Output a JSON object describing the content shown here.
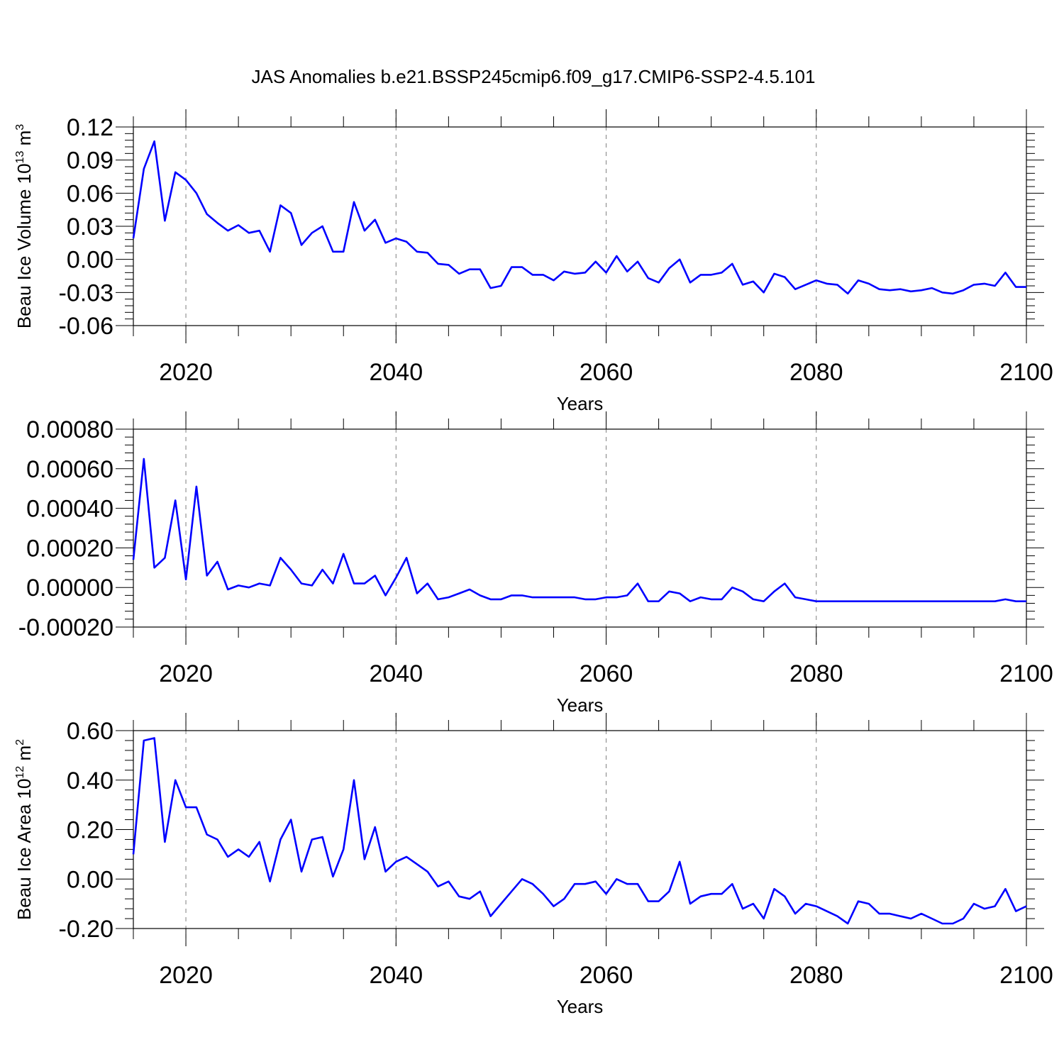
{
  "title": "JAS Anomalies b.e21.BSSP245cmip6.f09_g17.CMIP6-SSP2-4.5.101",
  "colors": {
    "series": "#0000ff",
    "axes": "#000000",
    "grid": "#808080"
  },
  "chart_data": [
    {
      "type": "line",
      "ylabel": "Beau Ice Volume",
      "ylabel_unit_base": "10",
      "ylabel_unit_exp": "13",
      "ylabel_unit_m": "m",
      "ylabel_unit_mexp": "3",
      "xlabel": "Years",
      "xlim": [
        2015,
        2100
      ],
      "ylim": [
        -0.06,
        0.12
      ],
      "yticks": [
        -0.06,
        -0.03,
        0.0,
        0.03,
        0.06,
        0.09,
        0.12
      ],
      "yticklabels": [
        "-0.06",
        "-0.03",
        "0.00",
        "0.03",
        "0.06",
        "0.09",
        "0.12"
      ],
      "xticks": [
        2020,
        2040,
        2060,
        2080,
        2100
      ],
      "xticklabels": [
        "2020",
        "2040",
        "2060",
        "2080",
        "2100"
      ],
      "grid_x": [
        2020,
        2040,
        2060,
        2080
      ],
      "x": [
        2015,
        2016,
        2017,
        2018,
        2019,
        2020,
        2021,
        2022,
        2023,
        2024,
        2025,
        2026,
        2027,
        2028,
        2029,
        2030,
        2031,
        2032,
        2033,
        2034,
        2035,
        2036,
        2037,
        2038,
        2039,
        2040,
        2041,
        2042,
        2043,
        2044,
        2045,
        2046,
        2047,
        2048,
        2049,
        2050,
        2051,
        2052,
        2053,
        2054,
        2055,
        2056,
        2057,
        2058,
        2059,
        2060,
        2061,
        2062,
        2063,
        2064,
        2065,
        2066,
        2067,
        2068,
        2069,
        2070,
        2071,
        2072,
        2073,
        2074,
        2075,
        2076,
        2077,
        2078,
        2079,
        2080,
        2081,
        2082,
        2083,
        2084,
        2085,
        2086,
        2087,
        2088,
        2089,
        2090,
        2091,
        2092,
        2093,
        2094,
        2095,
        2096,
        2097,
        2098,
        2099,
        2100
      ],
      "series": [
        {
          "values": [
            0.019,
            0.082,
            0.107,
            0.035,
            0.079,
            0.072,
            0.06,
            0.041,
            0.033,
            0.026,
            0.031,
            0.024,
            0.026,
            0.007,
            0.049,
            0.042,
            0.013,
            0.024,
            0.03,
            0.007,
            0.007,
            0.052,
            0.026,
            0.036,
            0.015,
            0.019,
            0.016,
            0.007,
            0.006,
            -0.004,
            -0.005,
            -0.013,
            -0.009,
            -0.009,
            -0.026,
            -0.024,
            -0.007,
            -0.007,
            -0.014,
            -0.014,
            -0.019,
            -0.011,
            -0.013,
            -0.012,
            -0.002,
            -0.012,
            0.003,
            -0.011,
            -0.002,
            -0.017,
            -0.021,
            -0.008,
            0.0,
            -0.021,
            -0.014,
            -0.014,
            -0.012,
            -0.004,
            -0.023,
            -0.02,
            -0.03,
            -0.013,
            -0.016,
            -0.027,
            -0.023,
            -0.019,
            -0.022,
            -0.023,
            -0.031,
            -0.019,
            -0.022,
            -0.027,
            -0.028,
            -0.027,
            -0.029,
            -0.028,
            -0.026,
            -0.03,
            -0.031,
            -0.028,
            -0.023,
            -0.022,
            -0.024,
            -0.012,
            -0.025,
            -0.025
          ]
        }
      ]
    },
    {
      "type": "line",
      "ylabel": "",
      "xlabel": "Years",
      "xlim": [
        2015,
        2100
      ],
      "ylim": [
        -0.0002,
        0.0008
      ],
      "yticks": [
        -0.0002,
        0.0,
        0.0002,
        0.0004,
        0.0006,
        0.0008
      ],
      "yticklabels": [
        "-0.00020",
        "0.00000",
        "0.00020",
        "0.00040",
        "0.00060",
        "0.00080"
      ],
      "xticks": [
        2020,
        2040,
        2060,
        2080,
        2100
      ],
      "xticklabels": [
        "2020",
        "2040",
        "2060",
        "2080",
        "2100"
      ],
      "grid_x": [
        2020,
        2040,
        2060,
        2080
      ],
      "x": [
        2015,
        2016,
        2017,
        2018,
        2019,
        2020,
        2021,
        2022,
        2023,
        2024,
        2025,
        2026,
        2027,
        2028,
        2029,
        2030,
        2031,
        2032,
        2033,
        2034,
        2035,
        2036,
        2037,
        2038,
        2039,
        2040,
        2041,
        2042,
        2043,
        2044,
        2045,
        2046,
        2047,
        2048,
        2049,
        2050,
        2051,
        2052,
        2053,
        2054,
        2055,
        2056,
        2057,
        2058,
        2059,
        2060,
        2061,
        2062,
        2063,
        2064,
        2065,
        2066,
        2067,
        2068,
        2069,
        2070,
        2071,
        2072,
        2073,
        2074,
        2075,
        2076,
        2077,
        2078,
        2079,
        2080,
        2081,
        2082,
        2083,
        2084,
        2085,
        2086,
        2087,
        2088,
        2089,
        2090,
        2091,
        2092,
        2093,
        2094,
        2095,
        2096,
        2097,
        2098,
        2099,
        2100
      ],
      "series": [
        {
          "values": [
            0.00014,
            0.00065,
            0.0001,
            0.00015,
            0.00044,
            4e-05,
            0.00051,
            6e-05,
            0.00013,
            -1e-05,
            1e-05,
            0.0,
            2e-05,
            1e-05,
            0.00015,
            9e-05,
            2e-05,
            1e-05,
            9e-05,
            2e-05,
            0.00017,
            2e-05,
            2e-05,
            6e-05,
            -4e-05,
            5e-05,
            0.00015,
            -3e-05,
            2e-05,
            -6e-05,
            -5e-05,
            -3e-05,
            -1e-05,
            -4e-05,
            -6e-05,
            -6e-05,
            -4e-05,
            -4e-05,
            -5e-05,
            -5e-05,
            -5e-05,
            -5e-05,
            -5e-05,
            -6e-05,
            -6e-05,
            -5e-05,
            -5e-05,
            -4e-05,
            2e-05,
            -7e-05,
            -7e-05,
            -2e-05,
            -3e-05,
            -7e-05,
            -5e-05,
            -6e-05,
            -6e-05,
            0.0,
            -2e-05,
            -6e-05,
            -7e-05,
            -2e-05,
            2e-05,
            -5e-05,
            -6e-05,
            -7e-05,
            -7e-05,
            -7e-05,
            -7e-05,
            -7e-05,
            -7e-05,
            -7e-05,
            -7e-05,
            -7e-05,
            -7e-05,
            -7e-05,
            -7e-05,
            -7e-05,
            -7e-05,
            -7e-05,
            -7e-05,
            -7e-05,
            -7e-05,
            -6e-05,
            -7e-05,
            -7e-05
          ]
        }
      ]
    },
    {
      "type": "line",
      "ylabel": "Beau Ice Area",
      "ylabel_unit_base": "10",
      "ylabel_unit_exp": "12",
      "ylabel_unit_m": "m",
      "ylabel_unit_mexp": "2",
      "xlabel": "Years",
      "xlim": [
        2015,
        2100
      ],
      "ylim": [
        -0.2,
        0.6
      ],
      "yticks": [
        -0.2,
        0.0,
        0.2,
        0.4,
        0.6
      ],
      "yticklabels": [
        "-0.20",
        "0.00",
        "0.20",
        "0.40",
        "0.60"
      ],
      "xticks": [
        2020,
        2040,
        2060,
        2080,
        2100
      ],
      "xticklabels": [
        "2020",
        "2040",
        "2060",
        "2080",
        "2100"
      ],
      "grid_x": [
        2020,
        2040,
        2060,
        2080
      ],
      "x": [
        2015,
        2016,
        2017,
        2018,
        2019,
        2020,
        2021,
        2022,
        2023,
        2024,
        2025,
        2026,
        2027,
        2028,
        2029,
        2030,
        2031,
        2032,
        2033,
        2034,
        2035,
        2036,
        2037,
        2038,
        2039,
        2040,
        2041,
        2042,
        2043,
        2044,
        2045,
        2046,
        2047,
        2048,
        2049,
        2050,
        2051,
        2052,
        2053,
        2054,
        2055,
        2056,
        2057,
        2058,
        2059,
        2060,
        2061,
        2062,
        2063,
        2064,
        2065,
        2066,
        2067,
        2068,
        2069,
        2070,
        2071,
        2072,
        2073,
        2074,
        2075,
        2076,
        2077,
        2078,
        2079,
        2080,
        2081,
        2082,
        2083,
        2084,
        2085,
        2086,
        2087,
        2088,
        2089,
        2090,
        2091,
        2092,
        2093,
        2094,
        2095,
        2096,
        2097,
        2098,
        2099,
        2100
      ],
      "series": [
        {
          "values": [
            0.1,
            0.56,
            0.57,
            0.15,
            0.4,
            0.29,
            0.29,
            0.18,
            0.16,
            0.09,
            0.12,
            0.09,
            0.15,
            -0.01,
            0.16,
            0.24,
            0.03,
            0.16,
            0.17,
            0.01,
            0.12,
            0.4,
            0.08,
            0.21,
            0.03,
            0.07,
            0.09,
            0.06,
            0.03,
            -0.03,
            -0.01,
            -0.07,
            -0.08,
            -0.05,
            -0.15,
            -0.1,
            -0.05,
            0.0,
            -0.02,
            -0.06,
            -0.11,
            -0.08,
            -0.02,
            -0.02,
            -0.01,
            -0.06,
            0.0,
            -0.02,
            -0.02,
            -0.09,
            -0.09,
            -0.05,
            0.07,
            -0.1,
            -0.07,
            -0.06,
            -0.06,
            -0.02,
            -0.12,
            -0.1,
            -0.16,
            -0.04,
            -0.07,
            -0.14,
            -0.1,
            -0.11,
            -0.13,
            -0.15,
            -0.18,
            -0.09,
            -0.1,
            -0.14,
            -0.14,
            -0.15,
            -0.16,
            -0.14,
            -0.16,
            -0.18,
            -0.18,
            -0.16,
            -0.1,
            -0.12,
            -0.11,
            -0.04,
            -0.13,
            -0.11
          ]
        }
      ]
    }
  ]
}
